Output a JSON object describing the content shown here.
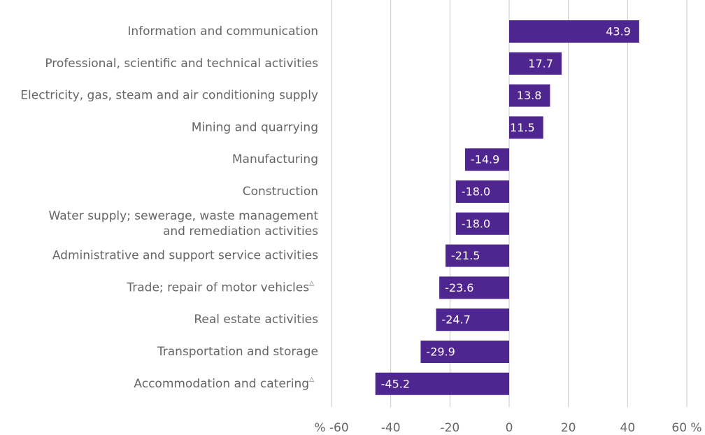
{
  "chart_data": {
    "type": "barh",
    "categories": [
      "Information and communication",
      "Professional, scientific and technical activities",
      "Electricity, gas, steam and air conditioning supply",
      "Mining and quarrying",
      "Manufacturing",
      "Construction",
      "Water supply; sewerage, waste management\nand remediation activities",
      "Administrative and support service activities",
      "Trade; repair of motor vehicles△",
      "Real estate activities",
      "Transportation and storage",
      "Accommodation and catering△"
    ],
    "values": [
      43.9,
      17.7,
      13.8,
      11.5,
      -14.9,
      -18,
      -18,
      -21.5,
      -23.6,
      -24.7,
      -29.9,
      -45.2
    ],
    "value_labels": [
      "43.9",
      "17.7",
      "13.8",
      "11.5",
      "-14.9",
      "-18.0",
      "-18.0",
      "-21.5",
      "-23.6",
      "-24.7",
      "-29.9",
      "-45.2"
    ],
    "color": "#4f2590",
    "xlim": [
      -60,
      60
    ],
    "xticks": [
      {
        "value": -60,
        "label": "% -60"
      },
      -40,
      -20,
      0,
      20,
      40,
      {
        "value": 60,
        "label": "60 %"
      }
    ],
    "grid": true
  }
}
